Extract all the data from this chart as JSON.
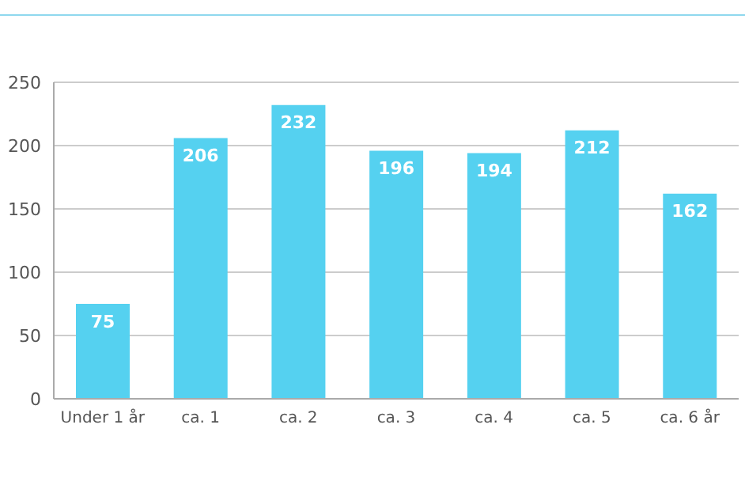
{
  "chart_data": {
    "type": "bar",
    "categories": [
      "Under 1 år",
      "ca. 1",
      "ca. 2",
      "ca. 3",
      "ca. 4",
      "ca. 5",
      "ca. 6 år"
    ],
    "values": [
      75,
      206,
      232,
      196,
      194,
      212,
      162
    ],
    "color": "#55d1f0",
    "ylim": [
      0,
      250
    ],
    "yticks": [
      0,
      50,
      100,
      150,
      200,
      250
    ],
    "grid": "y",
    "data_labels": true
  }
}
